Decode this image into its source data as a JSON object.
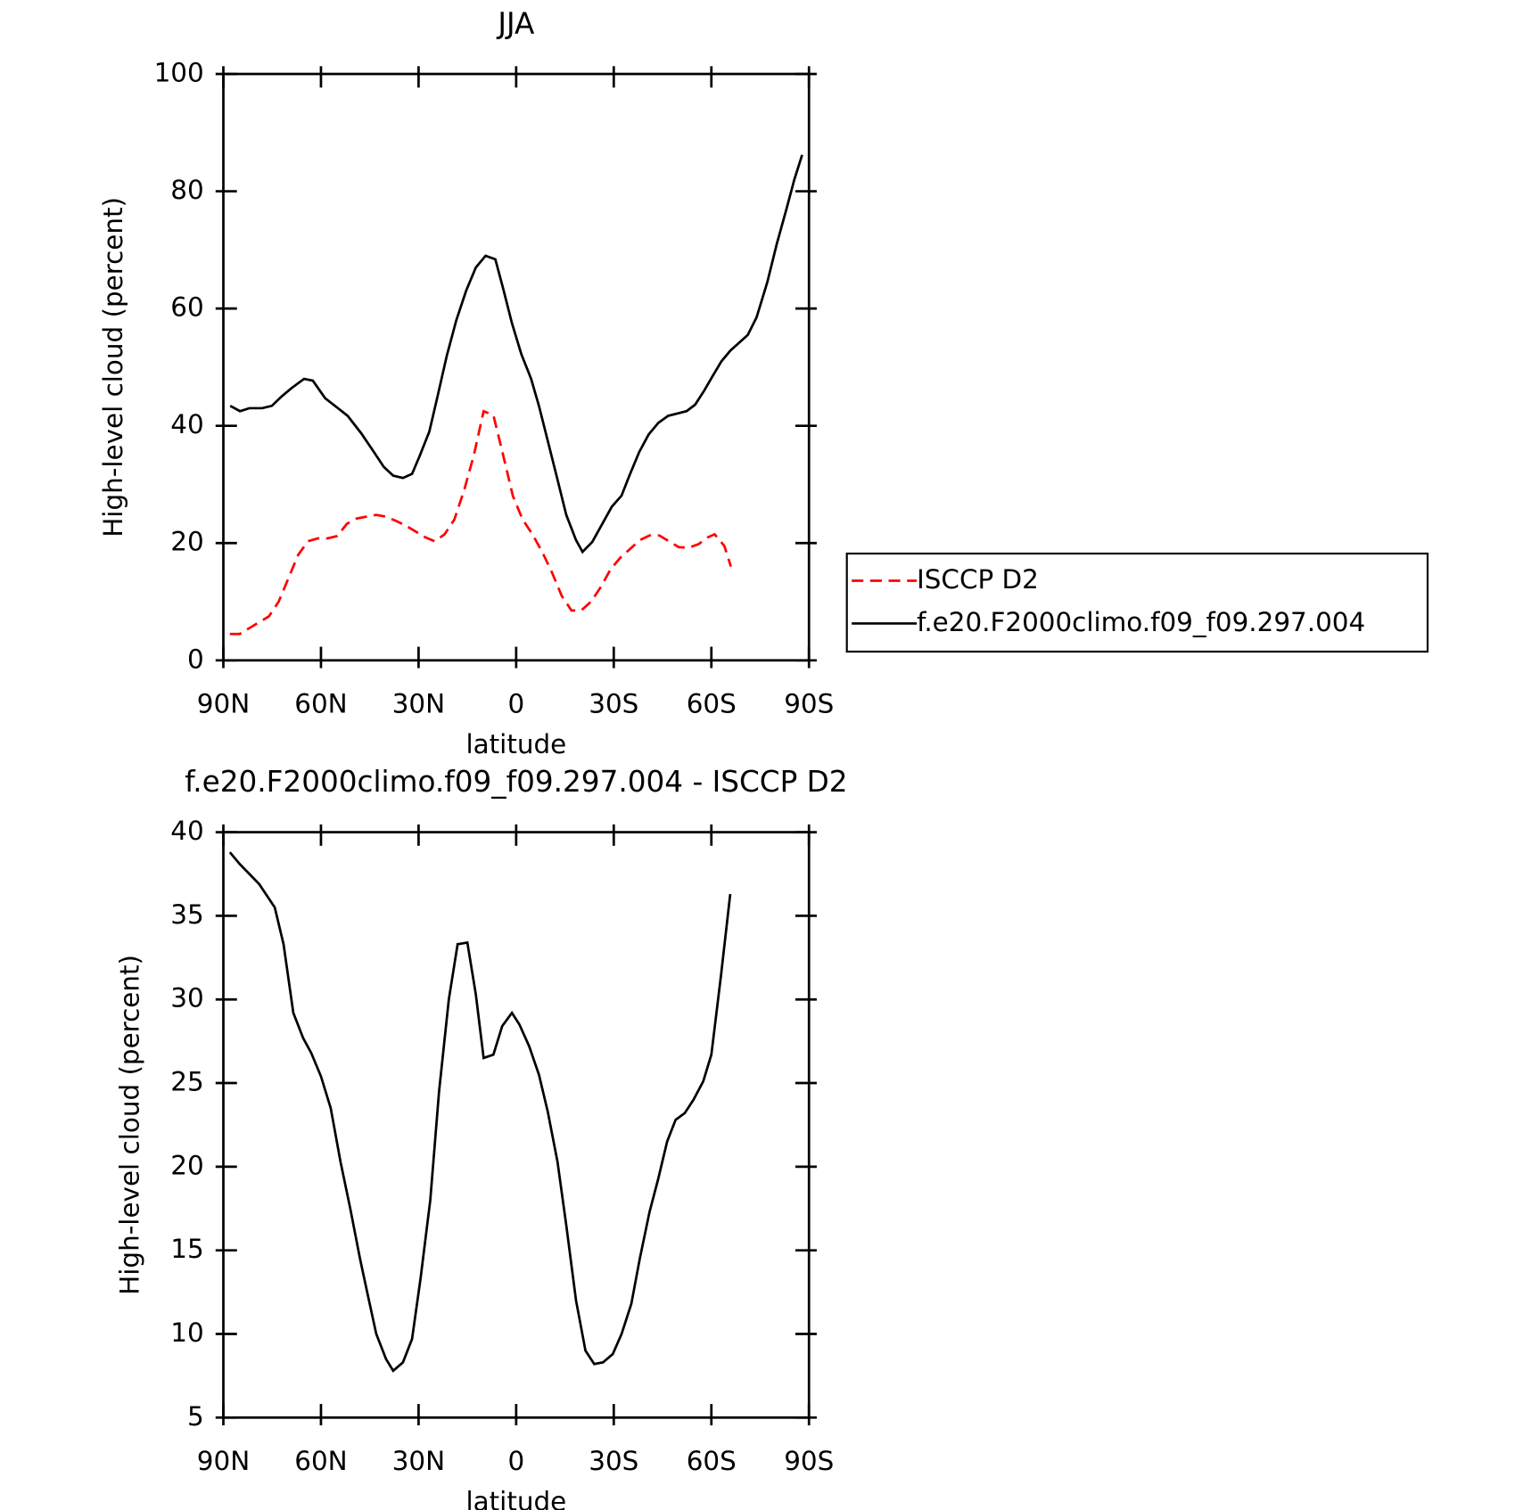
{
  "chart_data": [
    {
      "type": "line",
      "title": "JJA",
      "xlabel": "latitude",
      "ylabel": "High-level cloud (percent)",
      "xlim": [
        90,
        -90
      ],
      "ylim": [
        0,
        100
      ],
      "xticks": [
        {
          "value": 90,
          "label": "90N"
        },
        {
          "value": 60,
          "label": "60N"
        },
        {
          "value": 30,
          "label": "30N"
        },
        0,
        {
          "value": -30,
          "label": "30S"
        },
        {
          "value": -60,
          "label": "60S"
        },
        {
          "value": -90,
          "label": "90S"
        }
      ],
      "yticks": [
        0,
        20,
        40,
        60,
        80,
        100
      ],
      "legend": "outside-right",
      "series": [
        {
          "name": "ISCCP D2",
          "color": "#ff0000",
          "linestyle": "dashed",
          "x": [
            88,
            85,
            82,
            79,
            76,
            73,
            70,
            67,
            64,
            61,
            58,
            55,
            52,
            49,
            46,
            43,
            40,
            37,
            34,
            31,
            28,
            25,
            22,
            19,
            16,
            13,
            10,
            7,
            4,
            1,
            -2,
            -5,
            -8,
            -11,
            -14,
            -17,
            -20,
            -23,
            -26,
            -29,
            -32,
            -35,
            -38,
            -41,
            -44,
            -47,
            -50,
            -53,
            -56,
            -59,
            -61,
            -64,
            -66
          ],
          "values": [
            4.5,
            4.5,
            5.5,
            6.5,
            7.5,
            10,
            14,
            18,
            20.3,
            20.8,
            20.8,
            21.2,
            23.3,
            24.2,
            24.5,
            24.8,
            24.5,
            23.8,
            23,
            22,
            21,
            20.3,
            21.5,
            24,
            29,
            35,
            42.5,
            41.8,
            35,
            28,
            24,
            21.5,
            18.5,
            15,
            11,
            8.5,
            8.5,
            10,
            12.5,
            15.5,
            17.5,
            19,
            20.5,
            21.3,
            21.3,
            20.3,
            19.3,
            19.2,
            19.8,
            21,
            21.5,
            19.5,
            16
          ]
        },
        {
          "name": "f.e20.F2000climo.f09_f09.297.004",
          "color": "#000000",
          "linestyle": "solid",
          "x": [
            87.9,
            84.9,
            82,
            78.1,
            75.1,
            72.1,
            69.1,
            65.2,
            62.5,
            58.7,
            55.7,
            51.8,
            47.6,
            43.7,
            40.7,
            37.8,
            34.8,
            32,
            29.7,
            26.7,
            24.3,
            21.3,
            18.4,
            15.4,
            12.4,
            9.4,
            6.4,
            4,
            1.3,
            -1.6,
            -4.6,
            -7,
            -10,
            -12.4,
            -15.4,
            -18.4,
            -20.4,
            -23.4,
            -26.4,
            -29.4,
            -32.4,
            -34.8,
            -37.8,
            -40.7,
            -43.7,
            -46.7,
            -50.3,
            -52.4,
            -55,
            -57.8,
            -60.4,
            -63.1,
            -65.8,
            -71.2,
            -73.9,
            -77.2,
            -80.1,
            -83.1,
            -85.5,
            -87.9
          ],
          "values": [
            43.4,
            42.5,
            43,
            43,
            43.4,
            45,
            46.4,
            48,
            47.7,
            44.7,
            43.4,
            41.7,
            38.7,
            35.5,
            33,
            31.5,
            31.1,
            31.8,
            34.8,
            39,
            44.7,
            52,
            58,
            63,
            67,
            69,
            68.4,
            63.4,
            57.5,
            52.2,
            48,
            43.4,
            36.8,
            31.5,
            24.8,
            20.5,
            18.5,
            20.2,
            23.2,
            26.2,
            28.1,
            31.5,
            35.5,
            38.5,
            40.5,
            41.7,
            42.2,
            42.5,
            43.6,
            46,
            48.5,
            51,
            52.8,
            55.5,
            58.5,
            64.5,
            71,
            77,
            82,
            86.2
          ]
        }
      ]
    },
    {
      "type": "line",
      "title": "f.e20.F2000climo.f09_f09.297.004 - ISCCP D2",
      "xlabel": "latitude",
      "ylabel": "High-level cloud (percent)",
      "xlim": [
        90,
        -90
      ],
      "ylim": [
        5,
        40
      ],
      "xticks": [
        {
          "value": 90,
          "label": "90N"
        },
        {
          "value": 60,
          "label": "60N"
        },
        {
          "value": 30,
          "label": "30N"
        },
        0,
        {
          "value": -30,
          "label": "30S"
        },
        {
          "value": -60,
          "label": "60S"
        },
        {
          "value": -90,
          "label": "90S"
        }
      ],
      "yticks": [
        5,
        10,
        15,
        20,
        25,
        30,
        35,
        40
      ],
      "series": [
        {
          "color": "#000000",
          "linestyle": "solid",
          "x": [
            88,
            85,
            82,
            79,
            74.2,
            71.5,
            68.5,
            65.5,
            63,
            60,
            57,
            54,
            51,
            48,
            45.8,
            43,
            40,
            37.8,
            34.8,
            32,
            29.4,
            26.4,
            23.7,
            20.7,
            18,
            15,
            12.4,
            10,
            7,
            4.3,
            1.3,
            -1,
            -4,
            -7,
            -9.7,
            -12.7,
            -15.4,
            -18.4,
            -21.3,
            -24,
            -26.7,
            -29.7,
            -32.4,
            -35.4,
            -38,
            -41,
            -43.7,
            -46.4,
            -49,
            -51.8,
            -54.5,
            -57.5,
            -60,
            -63,
            -65.8
          ],
          "values": [
            38.8,
            38.1,
            37.5,
            36.9,
            35.5,
            33.3,
            29.2,
            27.7,
            26.8,
            25.4,
            23.5,
            20.3,
            17.5,
            14.5,
            12.5,
            10,
            8.5,
            7.8,
            8.3,
            9.7,
            13.3,
            18,
            24.5,
            30,
            33.3,
            33.4,
            30.3,
            26.5,
            26.7,
            28.4,
            29.2,
            28.5,
            27.2,
            25.5,
            23.3,
            20.3,
            16.5,
            12,
            9,
            8.2,
            8.3,
            8.8,
            10,
            11.8,
            14.5,
            17.3,
            19.3,
            21.5,
            22.8,
            23.2,
            24,
            25.1,
            26.7,
            31.5,
            36.3
          ]
        }
      ]
    }
  ]
}
